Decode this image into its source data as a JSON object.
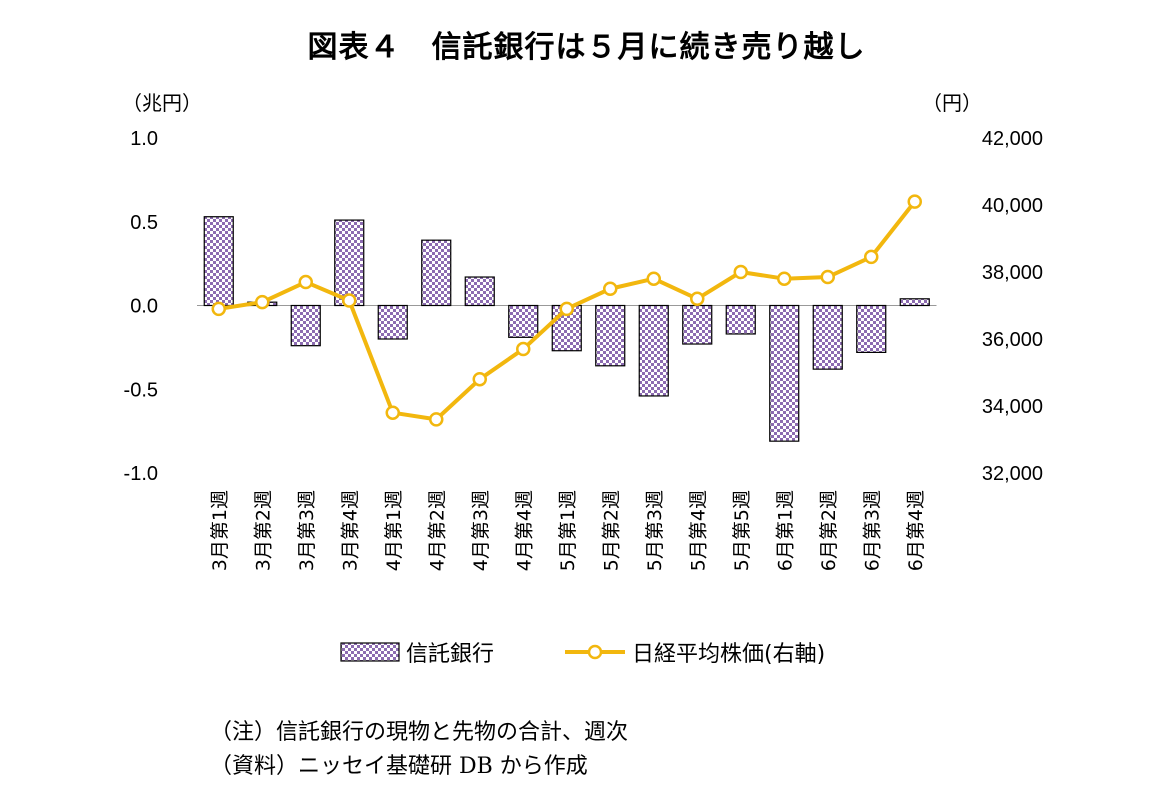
{
  "chart_data": {
    "type": "bar+line",
    "title": "図表４　信託銀行は５月に続き売り越し",
    "left_unit": "（兆円）",
    "right_unit": "（円）",
    "categories": [
      "3月第1週",
      "3月第2週",
      "3月第3週",
      "3月第4週",
      "4月第1週",
      "4月第2週",
      "4月第3週",
      "4月第4週",
      "5月第1週",
      "5月第2週",
      "5月第3週",
      "5月第4週",
      "5月第5週",
      "6月第1週",
      "6月第2週",
      "6月第3週",
      "6月第4週"
    ],
    "series": [
      {
        "name": "信託銀行",
        "type": "bar",
        "axis": "left",
        "color": "#8c6bb1",
        "values": [
          0.53,
          0.02,
          -0.24,
          0.51,
          -0.2,
          0.39,
          0.17,
          -0.19,
          -0.27,
          -0.36,
          -0.54,
          -0.23,
          -0.17,
          -0.81,
          -0.38,
          -0.28,
          0.04
        ]
      },
      {
        "name": "日経平均株価(右軸)",
        "type": "line",
        "axis": "right",
        "color": "#f2b70e",
        "values": [
          36900,
          37100,
          37700,
          37150,
          33800,
          33600,
          34800,
          35700,
          36900,
          37500,
          37800,
          37200,
          38000,
          37800,
          37850,
          38450,
          40100
        ]
      }
    ],
    "ylim_left": [
      -1.0,
      1.0
    ],
    "yticks_left": [
      "1.0",
      "0.5",
      "0.0",
      "-0.5",
      "-1.0"
    ],
    "ylim_right": [
      32000,
      42000
    ],
    "yticks_right": [
      "42,000",
      "40,000",
      "38,000",
      "36,000",
      "34,000",
      "32,000"
    ],
    "legend": [
      "信託銀行",
      "日経平均株価(右軸)"
    ]
  },
  "notes": [
    "（注）信託銀行の現物と先物の合計、週次",
    "（資料）ニッセイ基礎研 DB から作成"
  ]
}
